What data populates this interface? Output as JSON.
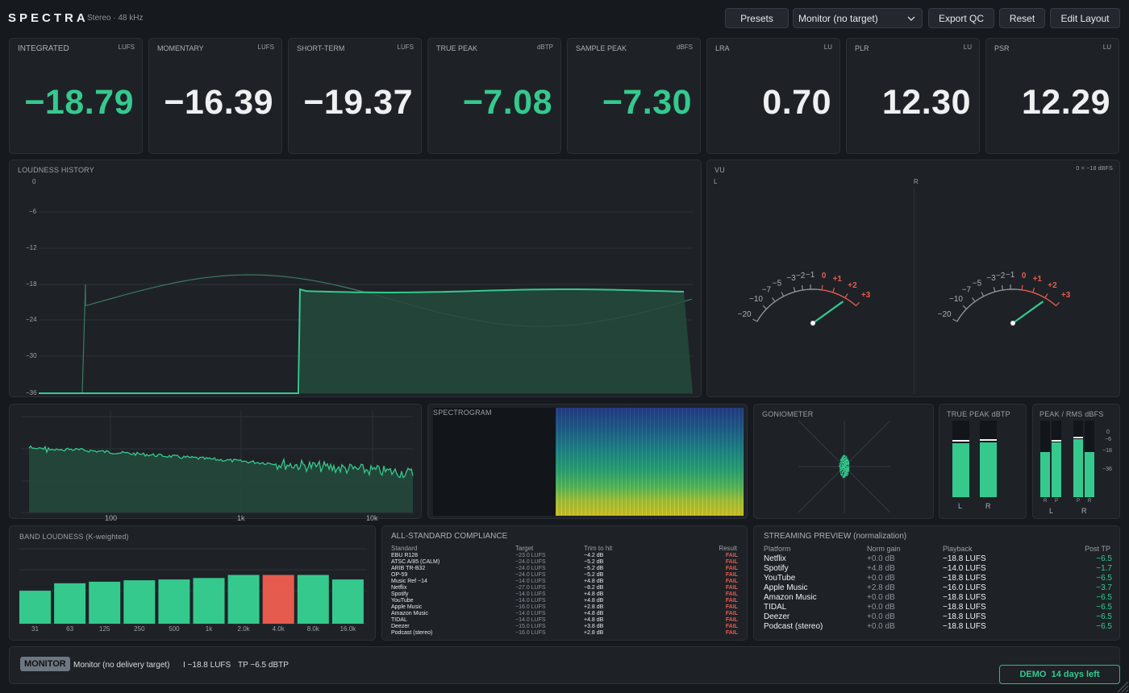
{
  "header": {
    "logo": "SPECTRA",
    "subtitle": "Stereo · 48 kHz",
    "presets": "Presets",
    "monitor_select": "Monitor (no target)",
    "export": "Export QC",
    "reset": "Reset",
    "edit_layout": "Edit Layout"
  },
  "metrics": [
    {
      "label": "INTEGRATED",
      "unit": "LUFS",
      "value": "−18.79",
      "color": "#35c98e"
    },
    {
      "label": "MOMENTARY",
      "unit": "LUFS",
      "value": "−16.39",
      "color": "#eef0f2"
    },
    {
      "label": "SHORT-TERM",
      "unit": "LUFS",
      "value": "−19.37",
      "color": "#eef0f2"
    },
    {
      "label": "TRUE PEAK",
      "unit": "dBTP",
      "value": "−7.08",
      "color": "#35c98e"
    },
    {
      "label": "SAMPLE PEAK",
      "unit": "dBFS",
      "value": "−7.30",
      "color": "#35c98e"
    },
    {
      "label": "LRA",
      "unit": "LU",
      "value": "0.70",
      "color": "#eef0f2"
    },
    {
      "label": "PLR",
      "unit": "LU",
      "value": "12.30",
      "color": "#eef0f2"
    },
    {
      "label": "PSR",
      "unit": "LU",
      "value": "12.29",
      "color": "#eef0f2"
    }
  ],
  "history": {
    "title": "LOUDNESS HISTORY",
    "y_ticks": [
      "0",
      "−6",
      "−12",
      "−18",
      "−24",
      "−30",
      "−36"
    ]
  },
  "vu": {
    "title": "VU",
    "ref": "0 = −18 dBFS",
    "left_label": "L",
    "right_label": "R",
    "scale": [
      "−20",
      "−10",
      "−7",
      "−5",
      "−3",
      "−2",
      "−1",
      "0",
      "+1",
      "+2",
      "+3"
    ]
  },
  "spectrum": {
    "x_ticks": [
      "100",
      "1k",
      "10k"
    ]
  },
  "spectrogram": {
    "title": "SPECTROGRAM"
  },
  "goniometer": {
    "title": "GONIOMETER"
  },
  "true_peak_meter": {
    "title": "TRUE PEAK dBTP",
    "channels": [
      {
        "label": "L",
        "level": 0.7
      },
      {
        "label": "R",
        "level": 0.72
      }
    ]
  },
  "peak_rms": {
    "title": "PEAK / RMS dBFS",
    "scale": [
      "0",
      "−6",
      "−18",
      "−36"
    ],
    "sub_labels": [
      "R",
      "P",
      "P",
      "R"
    ],
    "channels": [
      "L",
      "R"
    ]
  },
  "band_loudness": {
    "title": "BAND LOUDNESS (K-weighted)",
    "bands": [
      {
        "label": "31",
        "level": 0.44,
        "hot": false
      },
      {
        "label": "63",
        "level": 0.54,
        "hot": false
      },
      {
        "label": "125",
        "level": 0.56,
        "hot": false
      },
      {
        "label": "250",
        "level": 0.58,
        "hot": false
      },
      {
        "label": "500",
        "level": 0.59,
        "hot": false
      },
      {
        "label": "1k",
        "level": 0.61,
        "hot": false
      },
      {
        "label": "2.0k",
        "level": 0.65,
        "hot": false
      },
      {
        "label": "4.0k",
        "level": 0.65,
        "hot": true
      },
      {
        "label": "8.0k",
        "level": 0.65,
        "hot": false
      },
      {
        "label": "16.0k",
        "level": 0.59,
        "hot": false
      }
    ],
    "colors": {
      "normal": "#35c98e",
      "hot": "#e55b4d"
    }
  },
  "compliance": {
    "title": "ALL-STANDARD COMPLIANCE",
    "headers": [
      "Standard",
      "Target",
      "Trim to hit",
      "Result"
    ],
    "rows": [
      [
        "EBU R128",
        "−23.0 LUFS",
        "−4.2 dB",
        "FAIL"
      ],
      [
        "ATSC A/85 (CALM)",
        "−24.0 LUFS",
        "−5.2 dB",
        "FAIL"
      ],
      [
        "ARIB TR-B32",
        "−24.0 LUFS",
        "−5.2 dB",
        "FAIL"
      ],
      [
        "OP-59",
        "−24.0 LUFS",
        "−5.2 dB",
        "FAIL"
      ],
      [
        "Music Ref −14",
        "−14.0 LUFS",
        "+4.8 dB",
        "FAIL"
      ],
      [
        "Netflix",
        "−27.0 LUFS",
        "−8.2 dB",
        "FAIL"
      ],
      [
        "Spotify",
        "−14.0 LUFS",
        "+4.8 dB",
        "FAIL"
      ],
      [
        "YouTube",
        "−14.0 LUFS",
        "+4.8 dB",
        "FAIL"
      ],
      [
        "Apple Music",
        "−16.0 LUFS",
        "+2.8 dB",
        "FAIL"
      ],
      [
        "Amazon Music",
        "−14.0 LUFS",
        "+4.8 dB",
        "FAIL"
      ],
      [
        "TIDAL",
        "−14.0 LUFS",
        "+4.8 dB",
        "FAIL"
      ],
      [
        "Deezer",
        "−15.0 LUFS",
        "+3.8 dB",
        "FAIL"
      ],
      [
        "Podcast (stereo)",
        "−16.0 LUFS",
        "+2.8 dB",
        "FAIL"
      ]
    ]
  },
  "streaming": {
    "title": "STREAMING PREVIEW (normalization)",
    "headers": [
      "Platform",
      "Norm gain",
      "Playback",
      "Post TP"
    ],
    "rows": [
      [
        "Netflix",
        "+0.0 dB",
        "−18.8 LUFS",
        "−6.5"
      ],
      [
        "Spotify",
        "+4.8 dB",
        "−14.0 LUFS",
        "−1.7"
      ],
      [
        "YouTube",
        "+0.0 dB",
        "−18.8 LUFS",
        "−6.5"
      ],
      [
        "Apple Music",
        "+2.8 dB",
        "−16.0 LUFS",
        "−3.7"
      ],
      [
        "Amazon Music",
        "+0.0 dB",
        "−18.8 LUFS",
        "−6.5"
      ],
      [
        "TIDAL",
        "+0.0 dB",
        "−18.8 LUFS",
        "−6.5"
      ],
      [
        "Deezer",
        "+0.0 dB",
        "−18.8 LUFS",
        "−6.5"
      ],
      [
        "Podcast (stereo)",
        "+0.0 dB",
        "−18.8 LUFS",
        "−6.5"
      ]
    ]
  },
  "footer": {
    "badge": "MONITOR",
    "status": "Monitor (no delivery target)",
    "integrated": "I −18.8 LUFS",
    "true_peak": "TP −6.5 dBTP",
    "demo": "DEMO  14 days left"
  }
}
